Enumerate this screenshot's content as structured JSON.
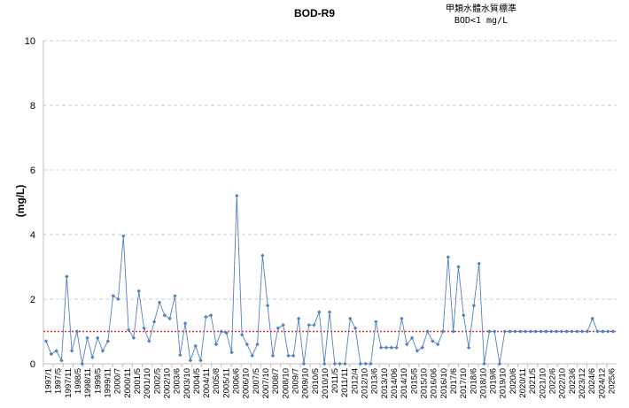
{
  "chart_data": {
    "type": "line",
    "title": "BOD-R9",
    "annotation_line1": "甲類水體水質標準",
    "annotation_line2": "BOD<1 mg/L",
    "xlabel": "",
    "ylabel": "(mg/L)",
    "ylim": [
      0,
      10
    ],
    "y_ticks": [
      "0",
      "2",
      "4",
      "6",
      "8",
      "10"
    ],
    "x_tick_labels": [
      "1997/1",
      "1997/5",
      "1997/11",
      "1998/5",
      "1998/11",
      "1999/5",
      "1999/11",
      "2000/7",
      "2000/11",
      "2001/5",
      "2001/10",
      "2002/5",
      "2002/10",
      "2003/6",
      "2003/10",
      "2004/5",
      "2004/11",
      "2005/8",
      "2005/11",
      "2006/6",
      "2006/10",
      "2007/5",
      "2007/10",
      "2008/7",
      "2008/10",
      "2009/7",
      "2009/10",
      "2010/5",
      "2010/10",
      "2011/5",
      "2011/11",
      "2012/4",
      "2012/10",
      "2013/6",
      "2013/10",
      "2014/06",
      "2014/10",
      "2015/5",
      "2015/10",
      "2016/06",
      "2016/10",
      "2017/6",
      "2017/10",
      "2018/6",
      "2018/10",
      "2019/6",
      "2019/10",
      "2020/6",
      "2020/11",
      "2021/5",
      "2021/10",
      "2022/6",
      "2022/10",
      "2023/6",
      "2023/12",
      "2024/6",
      "2024/12",
      "2025/6"
    ],
    "grid": true,
    "series": [
      {
        "name": "",
        "color": "#4f81bd",
        "values": [
          0.7,
          0.3,
          0.4,
          0.1,
          2.7,
          0.4,
          1.0,
          0.0,
          0.8,
          0.2,
          0.8,
          0.4,
          0.7,
          2.1,
          2.0,
          3.95,
          1.05,
          0.8,
          2.25,
          1.1,
          0.7,
          1.3,
          1.9,
          1.5,
          1.4,
          2.1,
          0.27,
          1.25,
          0.1,
          0.55,
          0.1,
          1.45,
          1.5,
          0.6,
          1.0,
          0.95,
          0.35,
          5.2,
          0.9,
          0.6,
          0.25,
          0.6,
          3.35,
          1.8,
          0.25,
          1.1,
          1.2,
          0.25,
          0.25,
          1.4,
          0.0,
          1.2,
          1.2,
          1.6,
          0.0,
          1.6,
          0.0,
          0.0,
          0.0,
          1.4,
          1.1,
          0.0,
          0.0,
          0.0,
          1.3,
          0.5,
          0.5,
          0.5,
          0.5,
          1.4,
          0.6,
          0.8,
          0.4,
          0.5,
          1.0,
          0.7,
          0.6,
          1.0,
          3.3,
          1.0,
          3.0,
          1.5,
          0.5,
          1.8,
          3.1,
          0.0,
          1.0,
          1.0,
          0.0,
          1.0,
          1.0,
          1.0,
          1.0,
          1.0,
          1.0,
          1.0,
          1.0,
          1.0,
          1.0,
          1.0,
          1.0,
          1.0,
          1.0,
          1.0,
          1.0,
          1.0,
          1.4,
          1.0,
          1.0,
          1.0,
          1.0
        ]
      }
    ],
    "reference_line": {
      "value": 1,
      "color": "#e03030"
    },
    "axis_color": "#bfbfbf",
    "grid_color": "#c8cde6"
  }
}
